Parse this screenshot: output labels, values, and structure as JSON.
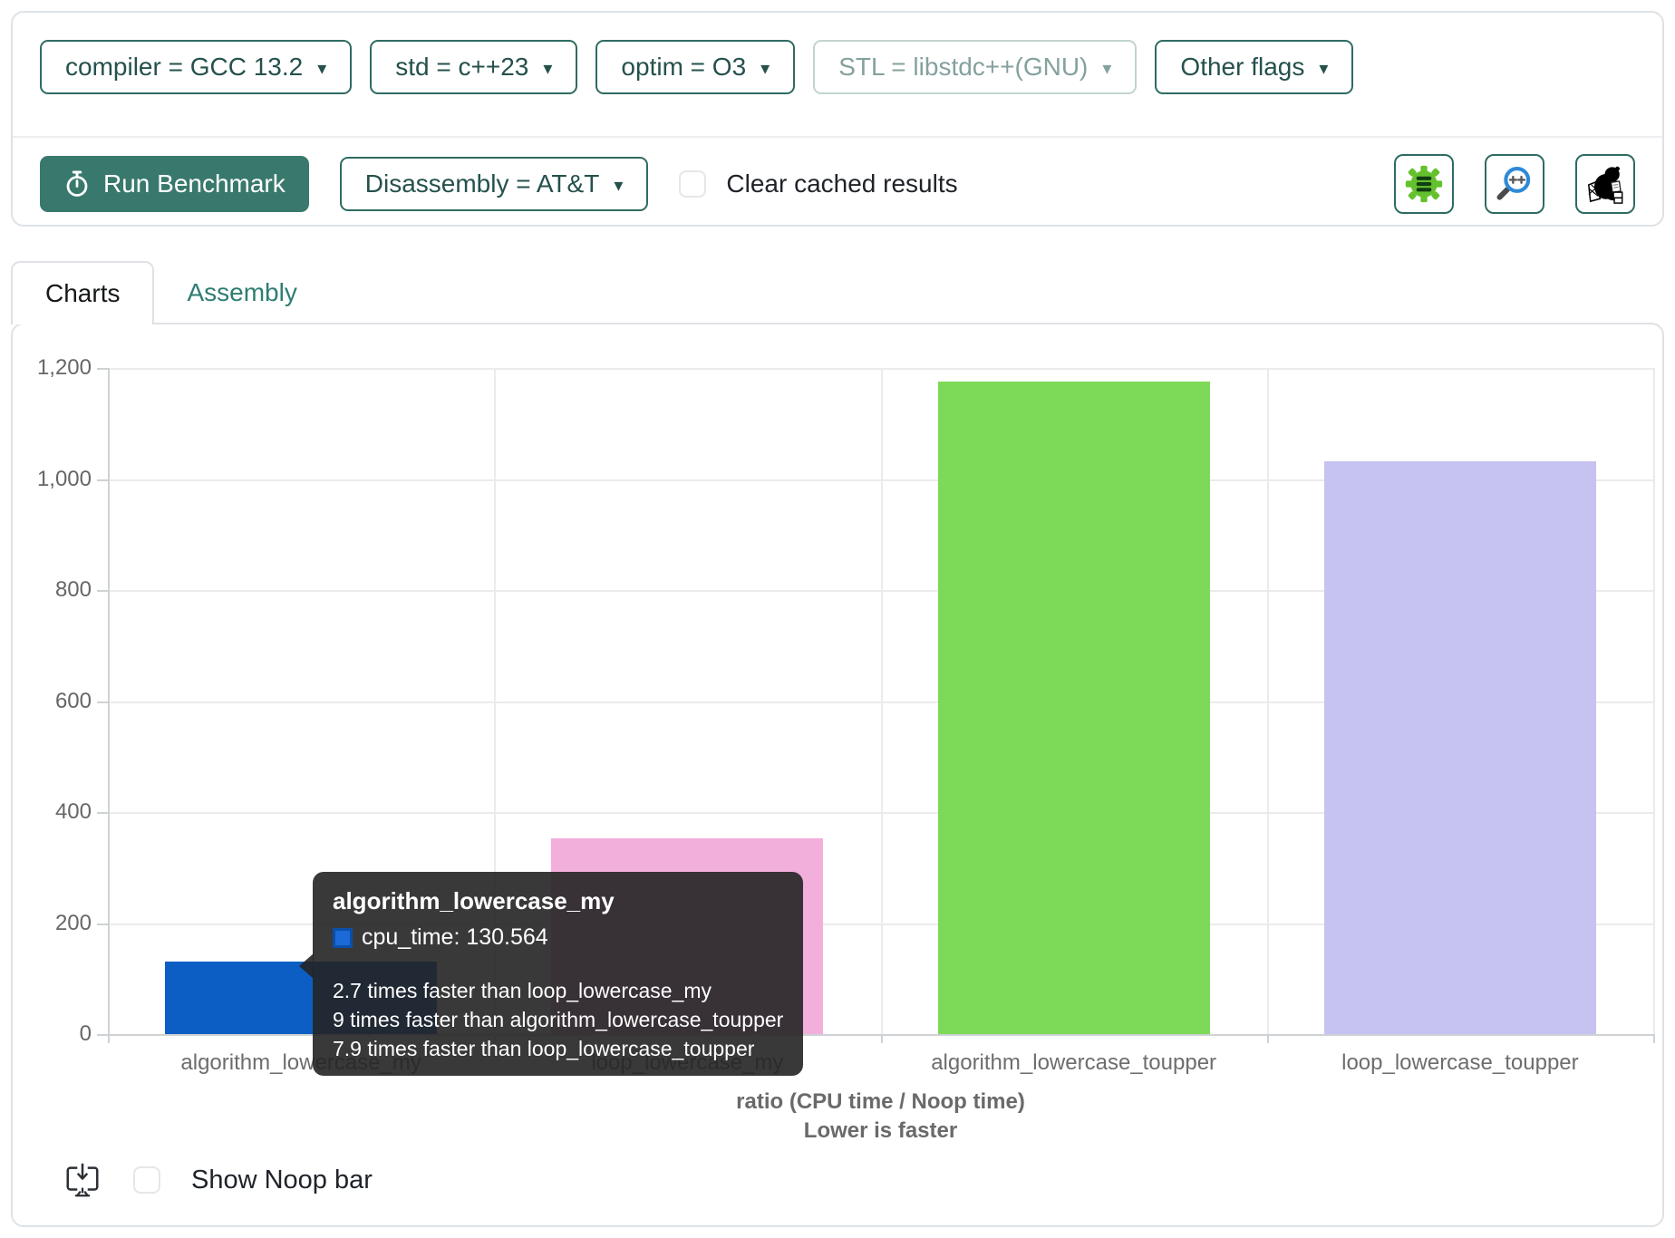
{
  "ui": {
    "caret_glyph": "▾"
  },
  "toolbar": {
    "filters": [
      {
        "label": "compiler = GCC 13.2",
        "enabled": true
      },
      {
        "label": "std = c++23",
        "enabled": true
      },
      {
        "label": "optim = O3",
        "enabled": true
      },
      {
        "label": "STL = libstdc++(GNU)",
        "enabled": false
      },
      {
        "label": "Other flags",
        "enabled": true
      }
    ],
    "run_button_label": "Run Benchmark",
    "disassembly_label": "Disassembly = AT&T",
    "clear_cached_label": "Clear cached results",
    "clear_cached_checked": false,
    "icon_buttons": [
      {
        "name": "compiler-explorer-icon"
      },
      {
        "name": "cpp-insights-icon"
      },
      {
        "name": "quick-bench-beaver-icon"
      }
    ]
  },
  "tabs": [
    {
      "label": "Charts",
      "active": true
    },
    {
      "label": "Assembly",
      "active": false
    }
  ],
  "chart_data": {
    "type": "bar",
    "categories": [
      "algorithm_lowercase_my",
      "loop_lowercase_my",
      "algorithm_lowercase_toupper",
      "loop_lowercase_toupper"
    ],
    "series": [
      {
        "name": "cpu_time",
        "values": [
          130.564,
          352.5,
          1175.1,
          1031.5
        ]
      }
    ],
    "bar_colors": [
      "#0c5ec5",
      "#f2afdc",
      "#7dda58",
      "#c6c2f2"
    ],
    "title": "",
    "xlabel": "ratio (CPU time / Noop time)",
    "xlabel2": "Lower is faster",
    "ylabel": "",
    "ylim": [
      0,
      1200
    ],
    "yticks": [
      "0",
      "200",
      "400",
      "600",
      "800",
      "1,000",
      "1,200"
    ],
    "grid": true,
    "legend_position": "none"
  },
  "tooltip": {
    "title": "algorithm_lowercase_my",
    "series_label": "cpu_time",
    "value": "130.564",
    "marker_color": "#1b6ad8",
    "marker_border": "#0c4ea8",
    "comparisons": [
      "2.7 times faster than loop_lowercase_my",
      "9 times faster than algorithm_lowercase_toupper",
      "7.9 times faster than loop_lowercase_toupper"
    ]
  },
  "footer": {
    "show_noop_label": "Show Noop bar",
    "show_noop_checked": false
  }
}
